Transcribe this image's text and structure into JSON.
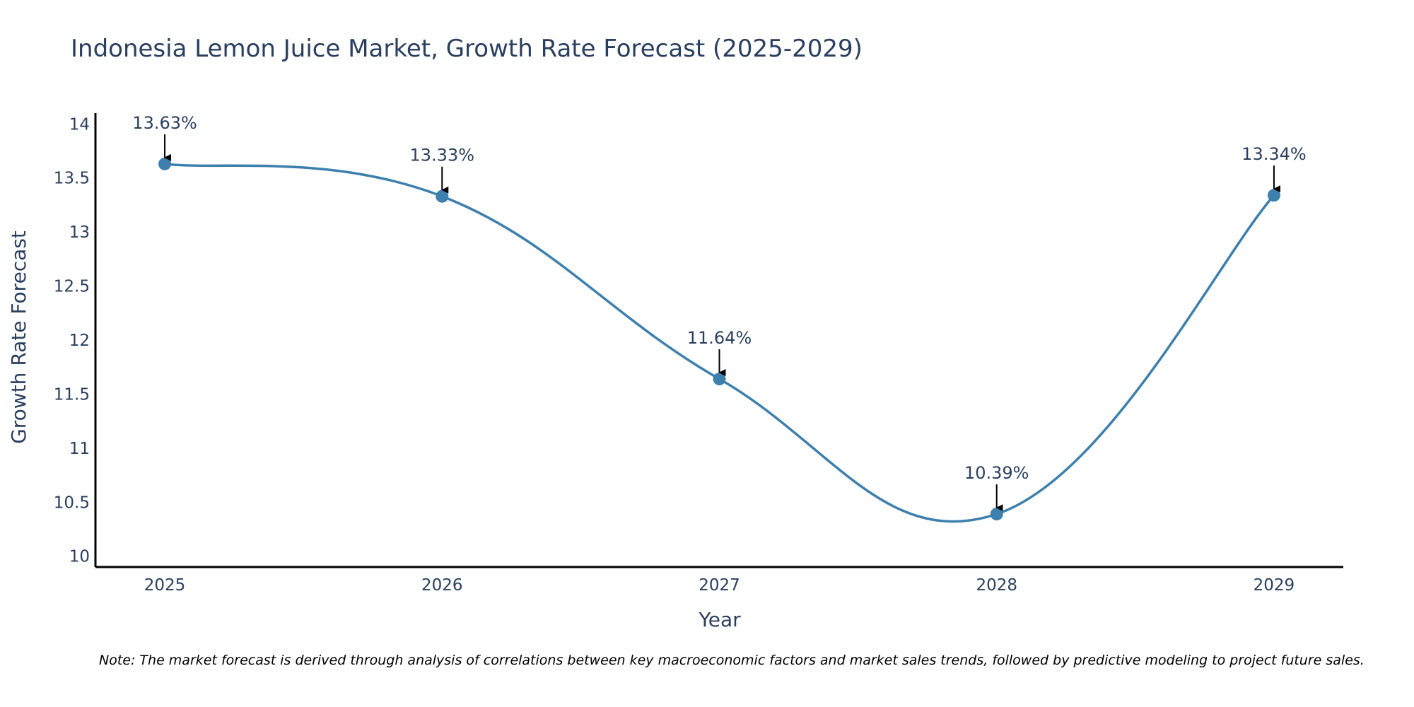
{
  "colors": {
    "line": "#3d7fad",
    "marker": "#3d7fad",
    "axis": "#000000",
    "text": "#2a3f5f",
    "arrow": "#000000"
  },
  "chart_data": {
    "type": "line",
    "title": "Indonesia Lemon Juice Market, Growth Rate Forecast (2025-2029)",
    "xlabel": "Year",
    "ylabel": "Growth Rate Forecast",
    "categories": [
      "2025",
      "2026",
      "2027",
      "2028",
      "2029"
    ],
    "values": [
      13.63,
      13.33,
      11.64,
      10.39,
      13.34
    ],
    "labels": [
      "13.63%",
      "13.33%",
      "11.64%",
      "10.39%",
      "13.34%"
    ],
    "ylim": [
      9.9,
      14.1
    ],
    "yticks": [
      10,
      10.5,
      11,
      11.5,
      12,
      12.5,
      13,
      13.5,
      14
    ],
    "ytick_labels": [
      "10",
      "10.5",
      "11",
      "11.5",
      "12",
      "12.5",
      "13",
      "13.5",
      "14"
    ],
    "xlim": [
      -0.25,
      4.25
    ],
    "grid": false,
    "note": "Note: The market forecast is derived through analysis of correlations between key macroeconomic factors and market sales trends, followed by predictive modeling to project future sales."
  }
}
